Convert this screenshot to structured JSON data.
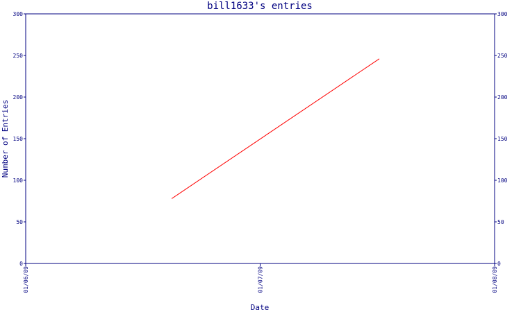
{
  "chart_data": {
    "type": "line",
    "title": "bill1633's entries",
    "xlabel": "Date",
    "ylabel": "Number of Entries",
    "x_ticks": [
      "01/06/09",
      "01/07/09",
      "01/08/09"
    ],
    "y_ticks": [
      0,
      50,
      100,
      150,
      200,
      250,
      300
    ],
    "ylim": [
      0,
      300
    ],
    "xlim": [
      "2009-06-01",
      "2009-08-01"
    ],
    "series": [
      {
        "color": "#ff0000",
        "points": [
          {
            "x": "2009-06-20",
            "y": 78
          },
          {
            "x": "2009-07-17",
            "y": 246
          }
        ]
      }
    ],
    "axis_color": "#000080",
    "grid": false
  }
}
